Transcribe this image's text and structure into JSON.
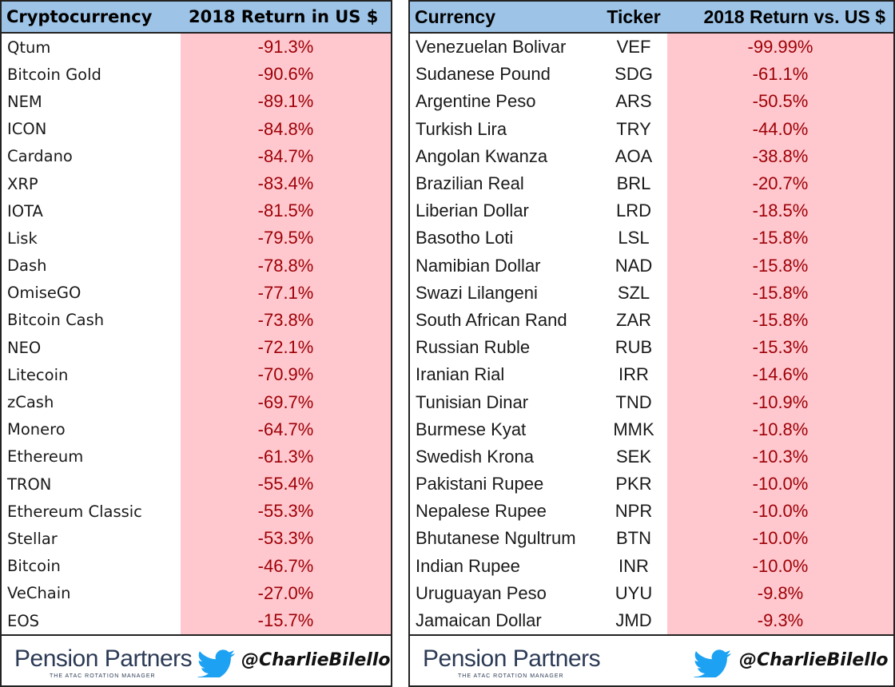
{
  "left_table": {
    "headers": [
      "Cryptocurrency",
      "2018 Return in US $"
    ],
    "rows": [
      [
        "Qtum",
        "-91.3%"
      ],
      [
        "Bitcoin Gold",
        "-90.6%"
      ],
      [
        "NEM",
        "-89.1%"
      ],
      [
        "ICON",
        "-84.8%"
      ],
      [
        "Cardano",
        "-84.7%"
      ],
      [
        "XRP",
        "-83.4%"
      ],
      [
        "IOTA",
        "-81.5%"
      ],
      [
        "Lisk",
        "-79.5%"
      ],
      [
        "Dash",
        "-78.8%"
      ],
      [
        "OmiseGO",
        "-77.1%"
      ],
      [
        "Bitcoin Cash",
        "-73.8%"
      ],
      [
        "NEO",
        "-72.1%"
      ],
      [
        "Litecoin",
        "-70.9%"
      ],
      [
        "zCash",
        "-69.7%"
      ],
      [
        "Monero",
        "-64.7%"
      ],
      [
        "Ethereum",
        "-61.3%"
      ],
      [
        "TRON",
        "-55.4%"
      ],
      [
        "Ethereum Classic",
        "-55.3%"
      ],
      [
        "Stellar",
        "-53.3%"
      ],
      [
        "Bitcoin",
        "-46.7%"
      ],
      [
        "VeChain",
        "-27.0%"
      ],
      [
        "EOS",
        "-15.7%"
      ]
    ]
  },
  "right_table": {
    "headers": [
      "Currency",
      "Ticker",
      "2018 Return vs. US $"
    ],
    "rows": [
      [
        "Venezuelan Bolivar",
        "VEF",
        "-99.99%"
      ],
      [
        "Sudanese Pound",
        "SDG",
        "-61.1%"
      ],
      [
        "Argentine Peso",
        "ARS",
        "-50.5%"
      ],
      [
        "Turkish Lira",
        "TRY",
        "-44.0%"
      ],
      [
        "Angolan Kwanza",
        "AOA",
        "-38.8%"
      ],
      [
        "Brazilian Real",
        "BRL",
        "-20.7%"
      ],
      [
        "Liberian Dollar",
        "LRD",
        "-18.5%"
      ],
      [
        "Basotho Loti",
        "LSL",
        "-15.8%"
      ],
      [
        "Namibian Dollar",
        "NAD",
        "-15.8%"
      ],
      [
        "Swazi Lilangeni",
        "SZL",
        "-15.8%"
      ],
      [
        "South African Rand",
        "ZAR",
        "-15.8%"
      ],
      [
        "Russian Ruble",
        "RUB",
        "-15.3%"
      ],
      [
        "Iranian Rial",
        "IRR",
        "-14.6%"
      ],
      [
        "Tunisian Dinar",
        "TND",
        "-10.9%"
      ],
      [
        "Burmese Kyat",
        "MMK",
        "-10.8%"
      ],
      [
        "Swedish Krona",
        "SEK",
        "-10.3%"
      ],
      [
        "Pakistani Rupee",
        "PKR",
        "-10.0%"
      ],
      [
        "Nepalese Rupee",
        "NPR",
        "-10.0%"
      ],
      [
        "Bhutanese Ngultrum",
        "BTN",
        "-10.0%"
      ],
      [
        "Indian Rupee",
        "INR",
        "-10.0%"
      ],
      [
        "Uruguayan Peso",
        "UYU",
        "-9.8%"
      ],
      [
        "Jamaican Dollar",
        "JMD",
        "-9.3%"
      ]
    ]
  },
  "footer": {
    "brand": "Pension Partners",
    "brand_tagline": "THE ATAC ROTATION MANAGER",
    "handle": "@CharlieBilello",
    "twitter_icon": "twitter-bird-icon"
  },
  "colors": {
    "header_bg": "#9dc3e6",
    "negative_cell_bg": "#ffc7ce",
    "negative_text": "#9c0006",
    "brand_text": "#2b3a55",
    "twitter_blue": "#1da1f2"
  }
}
